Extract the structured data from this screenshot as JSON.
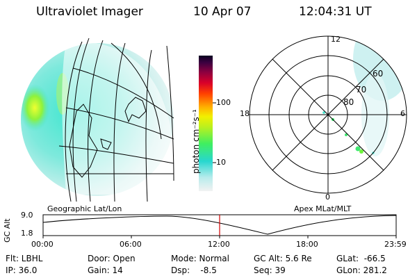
{
  "header": {
    "title": "Ultraviolet Imager",
    "date": "10 Apr 07",
    "time": "12:04:31 UT"
  },
  "colorbar": {
    "unit_label": "photon cm⁻²s⁻¹",
    "ticks": [
      "100",
      "10"
    ],
    "scale": "log"
  },
  "polar_plot": {
    "mlt_labels": [
      "12",
      "18",
      "6",
      "0"
    ],
    "lat_labels": [
      "60",
      "70",
      "80"
    ]
  },
  "panel_labels": {
    "left": "Geographic Lat/Lon",
    "right": "Apex MLat/MLT"
  },
  "altitude_plot": {
    "ylabel": "GC Alt",
    "yticks": [
      "9.0",
      "1.8"
    ],
    "xticks": [
      "00:00",
      "06:00",
      "12:00",
      "18:00",
      "23:59"
    ],
    "current_marker": "12:04"
  },
  "info": {
    "flt": "Flt: LBHL",
    "ip": "IP: 36.0",
    "door": "Door: Open",
    "gain": "Gain: 14",
    "mode": "Mode: Normal",
    "dsp": "Dsp:    -8.5",
    "gcalt": "GC Alt: 5.6 Re",
    "seq": "Seq: 39",
    "glat": "GLat:  -66.5",
    "glon": "GLon: 281.2"
  }
}
